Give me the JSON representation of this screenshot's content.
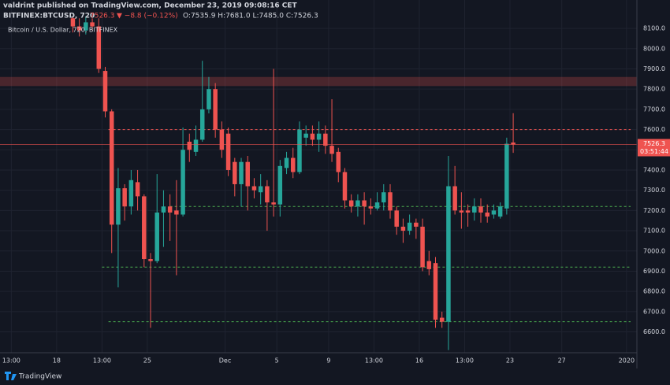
{
  "header": {
    "published": "valdrint published on TradingView.com, December 23, 2019 09:08:16 CET",
    "symbol": "BITFINEX:BTCUSD, 720",
    "price": "7526.3",
    "change": "▼ −8.8 (−0.12%)",
    "ohlc": "O:7535.9 H:7681.0 L:7485.0 C:7526.3"
  },
  "footer": {
    "brand": "TradingView"
  },
  "chart_data": {
    "type": "candlestick",
    "title": "Bitcoin / U.S. Dollar, 720, BITFINEX",
    "up_color": "#26a69a",
    "down_color": "#ef5350",
    "open": [
      8150,
      8110,
      8090,
      8130,
      8110,
      7890,
      7690,
      7130,
      7310,
      7220,
      7340,
      7270,
      6960,
      6950,
      7190,
      7220,
      7200,
      7180,
      7540,
      7490,
      7550,
      7700,
      7800,
      7600,
      7580,
      7440,
      7330,
      7440,
      7320,
      7290,
      7320,
      7240,
      7230,
      7410,
      7460,
      7390,
      7560,
      7580,
      7550,
      7580,
      7520,
      7490,
      7390,
      7250,
      7220,
      7250,
      7220,
      7210,
      7240,
      7290,
      7200,
      7120,
      7100,
      7140,
      7120,
      6950,
      6940,
      6670,
      6650,
      7320,
      7200,
      7200,
      7190,
      7220,
      7190,
      7180,
      7170,
      7210,
      7535.9
    ],
    "high": [
      8160,
      8150,
      8160,
      8150,
      8150,
      7910,
      7700,
      7410,
      7330,
      7400,
      7400,
      7280,
      6990,
      7380,
      7300,
      7280,
      7350,
      7610,
      7580,
      7620,
      7940,
      7860,
      7830,
      7640,
      7610,
      7460,
      7460,
      7470,
      7360,
      7380,
      7350,
      7900,
      7450,
      7490,
      7510,
      7640,
      7620,
      7620,
      7640,
      7620,
      7750,
      7510,
      7410,
      7280,
      7280,
      7290,
      7260,
      7290,
      7330,
      7330,
      7220,
      7160,
      7180,
      7160,
      7160,
      7000,
      6970,
      6700,
      7470,
      7420,
      7290,
      7230,
      7260,
      7260,
      7230,
      7230,
      7240,
      7560,
      7681.0
    ],
    "low": [
      8080,
      8060,
      8070,
      8090,
      7880,
      7660,
      6990,
      6820,
      7150,
      7180,
      7200,
      6920,
      6620,
      6940,
      7020,
      7050,
      6880,
      7170,
      7440,
      7470,
      7540,
      7680,
      7560,
      7460,
      7370,
      7270,
      7220,
      7200,
      7260,
      7230,
      7100,
      7170,
      7170,
      7380,
      7360,
      7380,
      7520,
      7520,
      7490,
      7480,
      7440,
      7340,
      7210,
      7190,
      7170,
      7130,
      7180,
      7200,
      7200,
      7160,
      7080,
      7040,
      7080,
      7060,
      6900,
      6880,
      6620,
      6620,
      6510,
      7180,
      7110,
      7120,
      7150,
      7140,
      7140,
      7160,
      7160,
      7180,
      7485.0
    ],
    "close": [
      8110,
      8090,
      8130,
      8110,
      7900,
      7690,
      7130,
      7310,
      7220,
      7350,
      7270,
      6960,
      6950,
      7190,
      7220,
      7190,
      7180,
      7500,
      7500,
      7550,
      7700,
      7800,
      7600,
      7500,
      7400,
      7330,
      7440,
      7320,
      7300,
      7320,
      7240,
      7230,
      7420,
      7460,
      7390,
      7600,
      7580,
      7550,
      7580,
      7520,
      7480,
      7390,
      7250,
      7220,
      7250,
      7220,
      7210,
      7240,
      7290,
      7200,
      7120,
      7100,
      7140,
      7120,
      6920,
      6910,
      6660,
      6650,
      7320,
      7200,
      7190,
      7190,
      7220,
      7190,
      7170,
      7200,
      7220,
      7530,
      7526.3
    ],
    "ylim": [
      6497,
      8186
    ],
    "yticks": [
      {
        "value": 6600,
        "label": "6600.0"
      },
      {
        "value": 6700,
        "label": "6700.0"
      },
      {
        "value": 6800,
        "label": "6800.0"
      },
      {
        "value": 6900,
        "label": "6900.0"
      },
      {
        "value": 7000,
        "label": "7000.0"
      },
      {
        "value": 7100,
        "label": "7100.0"
      },
      {
        "value": 7200,
        "label": "7200.0"
      },
      {
        "value": 7300,
        "label": "7300.0"
      },
      {
        "value": 7400,
        "label": "7400.0"
      },
      {
        "value": 7500,
        "label": "7500.0"
      },
      {
        "value": 7600,
        "label": "7600.0"
      },
      {
        "value": 7700,
        "label": "7700.0"
      },
      {
        "value": 7800,
        "label": "7800.0"
      },
      {
        "value": 7900,
        "label": "7900.0"
      },
      {
        "value": 8000,
        "label": "8000.0"
      },
      {
        "value": 8100,
        "label": "8100.0"
      }
    ],
    "xlim": [
      -11.25,
      87.1
    ],
    "xticks": [
      {
        "value": -9.5,
        "label": "13:00"
      },
      {
        "value": -2.5,
        "label": "18"
      },
      {
        "value": 4.5,
        "label": "13:00"
      },
      {
        "value": 11.5,
        "label": "25"
      },
      {
        "value": 23.5,
        "label": "Dec"
      },
      {
        "value": 31.5,
        "label": "5"
      },
      {
        "value": 39.5,
        "label": "9"
      },
      {
        "value": 46.5,
        "label": "13:00"
      },
      {
        "value": 53.5,
        "label": "16"
      },
      {
        "value": 60.5,
        "label": "13:00"
      },
      {
        "value": 67.5,
        "label": "23"
      },
      {
        "value": 75.5,
        "label": "27"
      },
      {
        "value": 85.5,
        "label": "2020"
      }
    ],
    "grid": true,
    "zone": {
      "from": 7815,
      "to": 7860,
      "color": "#ef5350"
    },
    "levels": [
      {
        "value": 7600,
        "start": 5.5,
        "color": "#ef5350"
      },
      {
        "value": 7220,
        "start": 15,
        "color": "#4caf50"
      },
      {
        "value": 6920,
        "start": 4.5,
        "color": "#4caf50"
      },
      {
        "value": 6650,
        "start": 5.5,
        "color": "#4caf50"
      }
    ],
    "last_price_label": "7526.3",
    "countdown": "03:51:44"
  }
}
